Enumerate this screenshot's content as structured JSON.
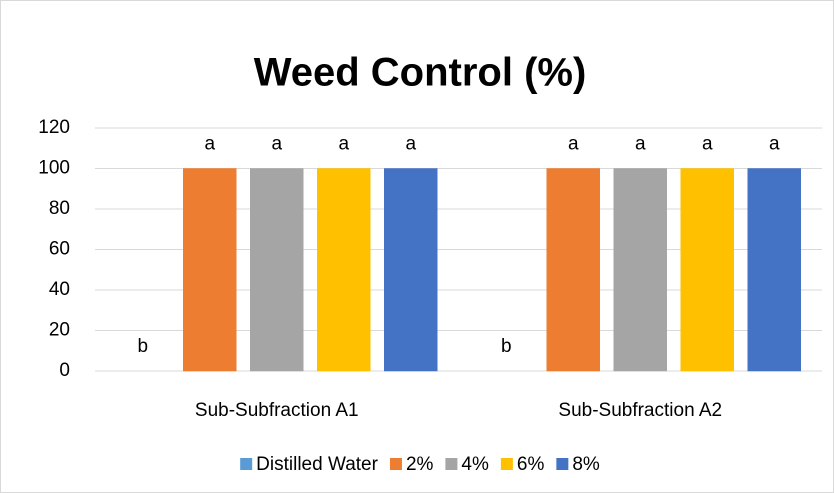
{
  "chart_data": {
    "type": "bar",
    "title": "Weed Control (%)",
    "categories": [
      "Sub-Subfraction A1",
      "Sub-Subfraction A2"
    ],
    "series": [
      {
        "name": "Distilled Water",
        "color": "#5b9bd5",
        "values": [
          0,
          0
        ],
        "value_labels": [
          "b",
          "b"
        ]
      },
      {
        "name": "2%",
        "color": "#ed7d31",
        "values": [
          100,
          100
        ],
        "value_labels": [
          "a",
          "a"
        ]
      },
      {
        "name": "4%",
        "color": "#a5a5a5",
        "values": [
          100,
          100
        ],
        "value_labels": [
          "a",
          "a"
        ]
      },
      {
        "name": "6%",
        "color": "#ffc000",
        "values": [
          100,
          100
        ],
        "value_labels": [
          "a",
          "a"
        ]
      },
      {
        "name": "8%",
        "color": "#4472c4",
        "values": [
          100,
          100
        ],
        "value_labels": [
          "a",
          "a"
        ]
      }
    ],
    "ylim": [
      0,
      120
    ],
    "yticks": [
      0,
      20,
      40,
      60,
      80,
      100,
      120
    ],
    "grid": true,
    "legend": "bottom"
  }
}
